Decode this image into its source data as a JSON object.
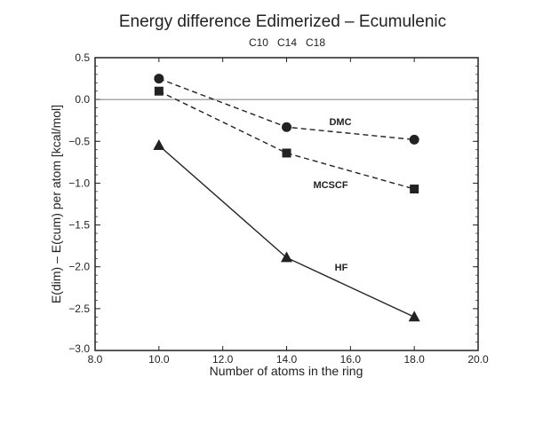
{
  "chart_data": {
    "type": "line",
    "title": "Energy difference Edimerized – Ecumulenic",
    "subtitle": "C10   C14   C18",
    "xlabel": "Number of atoms in the ring",
    "ylabel": "E(dim) – E(cum) per atom [kcal/mol]",
    "xlim": [
      8.0,
      20.0
    ],
    "ylim": [
      -3.0,
      0.5
    ],
    "xticks": [
      "8.0",
      "10.0",
      "12.0",
      "14.0",
      "16.0",
      "18.0",
      "20.0"
    ],
    "yticks": [
      "0.5",
      "0.0",
      "−0.5",
      "−1.0",
      "−1.5",
      "−2.0",
      "−2.5",
      "−3.0"
    ],
    "grid": false,
    "reference_line_y": 0.0,
    "x": [
      10,
      14,
      18
    ],
    "series": [
      {
        "name": "DMC",
        "marker": "circle",
        "style": "dashed",
        "values": [
          0.25,
          -0.33,
          -0.48
        ]
      },
      {
        "name": "MCSCF",
        "marker": "square",
        "style": "dashed",
        "values": [
          0.1,
          -0.64,
          -1.07
        ]
      },
      {
        "name": "HF",
        "marker": "triangle",
        "style": "solid",
        "values": [
          -0.55,
          -1.89,
          -2.6
        ]
      }
    ],
    "colors": {
      "ink": "#222222"
    }
  }
}
